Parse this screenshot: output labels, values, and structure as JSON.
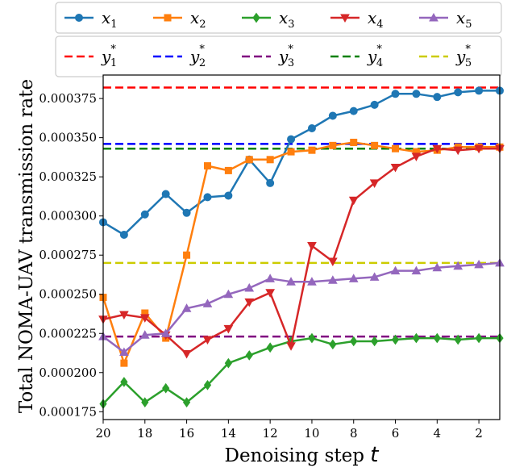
{
  "chart_data": {
    "type": "line",
    "xlabel": "Denoising step",
    "xlabel_var": "t",
    "ylabel": "Total NOMA-UAV transmission rate",
    "xlim": [
      20,
      1
    ],
    "ylim": [
      0.00017,
      0.00039
    ],
    "x_ticks": [
      20,
      18,
      16,
      14,
      12,
      10,
      8,
      6,
      4,
      2
    ],
    "y_ticks": [
      0.000175,
      0.0002,
      0.000225,
      0.00025,
      0.000275,
      0.0003,
      0.000325,
      0.00035,
      0.000375
    ],
    "y_tick_labels": [
      "0.000175",
      "0.000200",
      "0.000225",
      "0.000250",
      "0.000275",
      "0.000300",
      "0.000325",
      "0.000350",
      "0.000375"
    ],
    "grid": false,
    "x": [
      20,
      19,
      18,
      17,
      16,
      15,
      14,
      13,
      12,
      11,
      10,
      9,
      8,
      7,
      6,
      5,
      4,
      3,
      2,
      1
    ],
    "series": [
      {
        "name": "x",
        "sub": "1",
        "color": "#1f77b4",
        "marker": "circle",
        "values": [
          0.000296,
          0.000288,
          0.000301,
          0.000314,
          0.000302,
          0.000312,
          0.000313,
          0.000336,
          0.000321,
          0.000349,
          0.000356,
          0.000364,
          0.000367,
          0.000371,
          0.000378,
          0.000378,
          0.000376,
          0.000379,
          0.00038,
          0.00038
        ]
      },
      {
        "name": "x",
        "sub": "2",
        "color": "#ff7f0e",
        "marker": "square",
        "values": [
          0.000248,
          0.000206,
          0.000238,
          0.000222,
          0.000275,
          0.000332,
          0.000329,
          0.000336,
          0.000336,
          0.000341,
          0.000342,
          0.000345,
          0.000347,
          0.000345,
          0.000343,
          0.000341,
          0.000342,
          0.000344,
          0.000344,
          0.000344
        ]
      },
      {
        "name": "x",
        "sub": "3",
        "color": "#2ca02c",
        "marker": "diamond",
        "values": [
          0.00018,
          0.000194,
          0.000181,
          0.00019,
          0.000181,
          0.000192,
          0.000206,
          0.000211,
          0.000216,
          0.00022,
          0.000222,
          0.000218,
          0.00022,
          0.00022,
          0.000221,
          0.000222,
          0.000222,
          0.000221,
          0.000222,
          0.000222
        ]
      },
      {
        "name": "x",
        "sub": "4",
        "color": "#d62728",
        "marker": "triangle-down",
        "values": [
          0.000234,
          0.000237,
          0.000235,
          0.000224,
          0.000212,
          0.000221,
          0.000228,
          0.000245,
          0.000251,
          0.000217,
          0.000281,
          0.000271,
          0.00031,
          0.000321,
          0.000331,
          0.000338,
          0.000343,
          0.000342,
          0.000343,
          0.000343
        ]
      },
      {
        "name": "x",
        "sub": "5",
        "color": "#9467bd",
        "marker": "triangle-up",
        "values": [
          0.000223,
          0.000213,
          0.000224,
          0.000225,
          0.000241,
          0.000244,
          0.00025,
          0.000254,
          0.00026,
          0.000258,
          0.000258,
          0.000259,
          0.00026,
          0.000261,
          0.000265,
          0.000265,
          0.000267,
          0.000268,
          0.000269,
          0.00027
        ]
      }
    ],
    "reference_lines": [
      {
        "name": "y",
        "sub": "1",
        "sup": "*",
        "color": "#ff0000",
        "value": 0.000382
      },
      {
        "name": "y",
        "sub": "2",
        "sup": "*",
        "color": "#0000ff",
        "value": 0.000346
      },
      {
        "name": "y",
        "sub": "3",
        "sup": "*",
        "color": "#800080",
        "value": 0.000223
      },
      {
        "name": "y",
        "sub": "4",
        "sup": "*",
        "color": "#008000",
        "value": 0.000343
      },
      {
        "name": "y",
        "sub": "5",
        "sup": "*",
        "color": "#cccc00",
        "value": 0.00027
      }
    ]
  }
}
